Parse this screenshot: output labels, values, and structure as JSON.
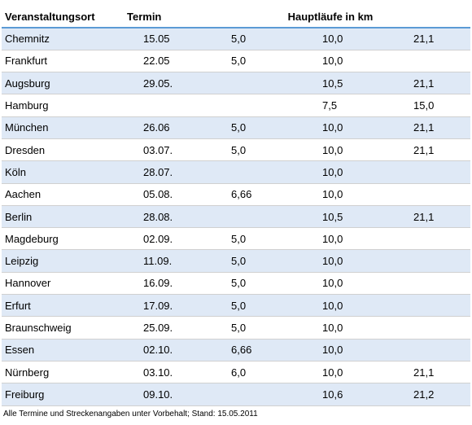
{
  "header": {
    "location": "Veranstaltungsort",
    "date": "Termin",
    "distances": "Hauptläufe in km"
  },
  "rows": [
    {
      "city": "Chemnitz",
      "date": "15.05",
      "d1": "5,0",
      "d2": "10,0",
      "d3": "21,1"
    },
    {
      "city": "Frankfurt",
      "date": "22.05",
      "d1": "5,0",
      "d2": "10,0",
      "d3": ""
    },
    {
      "city": "Augsburg",
      "date": "29.05.",
      "d1": "",
      "d2": "10,5",
      "d3": "21,1"
    },
    {
      "city": "Hamburg",
      "date": "",
      "d1": "",
      "d2": "7,5",
      "d3": "15,0"
    },
    {
      "city": "München",
      "date": "26.06",
      "d1": "5,0",
      "d2": "10,0",
      "d3": "21,1"
    },
    {
      "city": "Dresden",
      "date": "03.07.",
      "d1": "5,0",
      "d2": "10,0",
      "d3": "21,1"
    },
    {
      "city": "Köln",
      "date": "28.07.",
      "d1": "",
      "d2": "10,0",
      "d3": ""
    },
    {
      "city": "Aachen",
      "date": "05.08.",
      "d1": "6,66",
      "d2": "10,0",
      "d3": ""
    },
    {
      "city": "Berlin",
      "date": "28.08.",
      "d1": "",
      "d2": "10,5",
      "d3": "21,1"
    },
    {
      "city": "Magdeburg",
      "date": "02.09.",
      "d1": "5,0",
      "d2": "10,0",
      "d3": ""
    },
    {
      "city": "Leipzig",
      "date": "11.09.",
      "d1": "5,0",
      "d2": "10,0",
      "d3": ""
    },
    {
      "city": "Hannover",
      "date": "16.09.",
      "d1": "5,0",
      "d2": "10,0",
      "d3": ""
    },
    {
      "city": "Erfurt",
      "date": "17.09.",
      "d1": "5,0",
      "d2": "10,0",
      "d3": ""
    },
    {
      "city": "Braunschweig",
      "date": "25.09.",
      "d1": "5,0",
      "d2": "10,0",
      "d3": ""
    },
    {
      "city": "Essen",
      "date": "02.10.",
      "d1": "6,66",
      "d2": "10,0",
      "d3": ""
    },
    {
      "city": "Nürnberg",
      "date": "03.10.",
      "d1": "6,0",
      "d2": "10,0",
      "d3": "21,1"
    },
    {
      "city": "Freiburg",
      "date": "09.10.",
      "d1": "",
      "d2": "10,6",
      "d3": "21,2"
    }
  ],
  "footnote": "Alle Termine und Streckenangaben unter Vorbehalt; Stand: 15.05.2011",
  "colors": {
    "row_shade": "#dfe9f6",
    "header_rule": "#5b9bd5"
  }
}
